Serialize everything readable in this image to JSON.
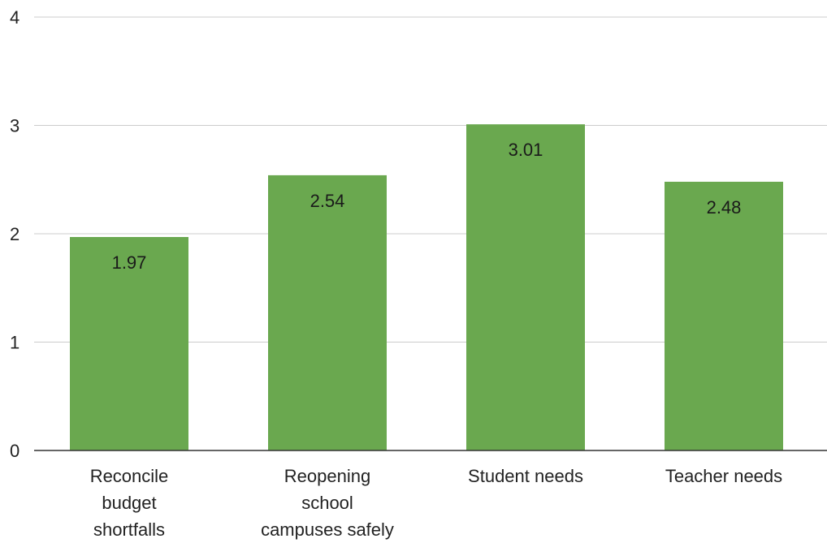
{
  "chart_data": {
    "type": "bar",
    "title": "",
    "xlabel": "",
    "ylabel": "",
    "categories": [
      [
        "Reconcile",
        "budget",
        "shortfalls"
      ],
      [
        "Reopening",
        "school",
        "campuses safely"
      ],
      [
        "Student needs"
      ],
      [
        "Teacher needs"
      ]
    ],
    "values": [
      1.97,
      2.54,
      3.01,
      2.48
    ],
    "data_labels": [
      "1.97",
      "2.54",
      "3.01",
      "2.48"
    ],
    "ylim": [
      0,
      4
    ],
    "yticks": [
      "0",
      "1",
      "2",
      "3",
      "4"
    ],
    "grid": true,
    "legend": "none",
    "colors": {
      "bar": "#6aa84f",
      "grid": "#cccccc",
      "axis": "#333333"
    }
  }
}
